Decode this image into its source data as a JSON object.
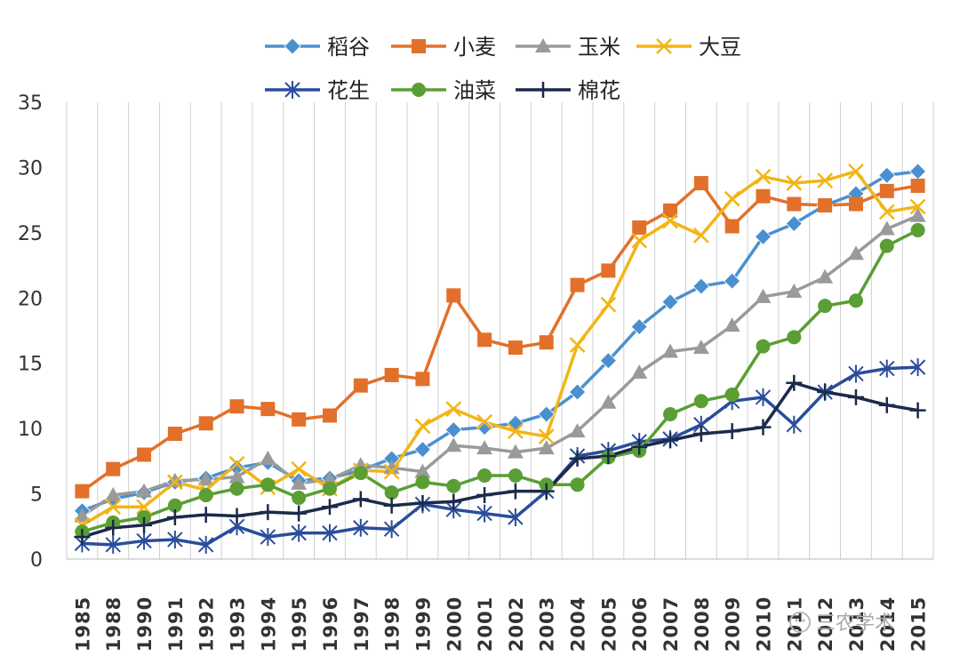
{
  "chart_data": {
    "type": "line",
    "title": "",
    "xlabel": "",
    "ylabel": "",
    "ylim": [
      0,
      35
    ],
    "yticks": [
      0,
      5,
      10,
      15,
      20,
      25,
      30,
      35
    ],
    "grid": "vertical",
    "legend_position": "top",
    "categories": [
      "1985",
      "1988",
      "1990",
      "1991",
      "1992",
      "1993",
      "1994",
      "1995",
      "1996",
      "1997",
      "1998",
      "1999",
      "2000",
      "2001",
      "2002",
      "2003",
      "2004",
      "2005",
      "2006",
      "2007",
      "2008",
      "2009",
      "2010",
      "2011",
      "2012",
      "2013",
      "2014",
      "2015"
    ],
    "series": [
      {
        "name": "稻谷",
        "color": "#4a90d0",
        "marker": "diamond",
        "values": [
          3.7,
          4.6,
          5.1,
          5.9,
          6.2,
          7.0,
          7.4,
          6.0,
          6.2,
          6.8,
          7.7,
          8.4,
          9.9,
          10.1,
          10.4,
          11.1,
          12.8,
          15.2,
          17.8,
          19.7,
          20.9,
          21.3,
          24.7,
          25.7,
          27.1,
          28.0,
          29.4,
          29.7
        ]
      },
      {
        "name": "小麦",
        "color": "#e2702a",
        "marker": "square",
        "values": [
          5.2,
          6.9,
          8.0,
          9.6,
          10.4,
          11.7,
          11.5,
          10.7,
          11.0,
          13.3,
          14.1,
          13.8,
          20.2,
          16.8,
          16.2,
          16.6,
          21.0,
          22.1,
          25.4,
          26.7,
          28.8,
          25.5,
          27.8,
          27.2,
          27.1,
          27.2,
          28.2,
          28.6
        ]
      },
      {
        "name": "玉米",
        "color": "#9a9a9a",
        "marker": "triangle",
        "values": [
          3.3,
          4.9,
          5.2,
          6.0,
          6.1,
          6.3,
          7.7,
          5.8,
          6.1,
          7.2,
          7.0,
          6.7,
          8.7,
          8.5,
          8.2,
          8.5,
          9.8,
          12.0,
          14.3,
          15.9,
          16.2,
          17.9,
          20.1,
          20.5,
          21.6,
          23.4,
          25.3,
          26.3
        ]
      },
      {
        "name": "大豆",
        "color": "#f2b515",
        "marker": "x",
        "values": [
          2.6,
          4.0,
          4.0,
          5.9,
          5.3,
          7.3,
          5.5,
          6.9,
          5.4,
          6.8,
          6.7,
          10.2,
          11.5,
          10.5,
          9.8,
          9.4,
          16.4,
          19.5,
          24.4,
          25.9,
          24.8,
          27.6,
          29.3,
          28.8,
          29.0,
          29.7,
          26.6,
          27.0
        ]
      },
      {
        "name": "花生",
        "color": "#2a4d9c",
        "marker": "asterisk",
        "values": [
          1.2,
          1.1,
          1.4,
          1.5,
          1.1,
          2.5,
          1.7,
          2.0,
          2.0,
          2.4,
          2.3,
          4.2,
          3.8,
          3.5,
          3.2,
          5.2,
          7.9,
          8.3,
          9.0,
          9.2,
          10.3,
          12.1,
          12.4,
          10.3,
          12.8,
          14.2,
          14.6,
          14.7
        ]
      },
      {
        "name": "油菜",
        "color": "#5a9e34",
        "marker": "circle",
        "values": [
          2.1,
          2.8,
          3.2,
          4.1,
          4.9,
          5.4,
          5.7,
          4.7,
          5.4,
          6.6,
          5.1,
          5.9,
          5.6,
          6.4,
          6.4,
          5.7,
          5.7,
          7.8,
          8.3,
          11.1,
          12.1,
          12.6,
          16.3,
          17.0,
          19.4,
          19.8,
          24.0,
          25.2
        ]
      },
      {
        "name": "棉花",
        "color": "#1b2a4a",
        "marker": "plus",
        "values": [
          1.7,
          2.4,
          2.6,
          3.2,
          3.4,
          3.3,
          3.6,
          3.5,
          4.0,
          4.6,
          4.1,
          4.3,
          4.4,
          4.9,
          5.2,
          5.2,
          7.7,
          7.9,
          8.6,
          9.1,
          9.6,
          9.8,
          10.1,
          13.5,
          12.8,
          12.4,
          11.8,
          11.4
        ]
      }
    ]
  },
  "watermark": {
    "text": "三农学术"
  }
}
